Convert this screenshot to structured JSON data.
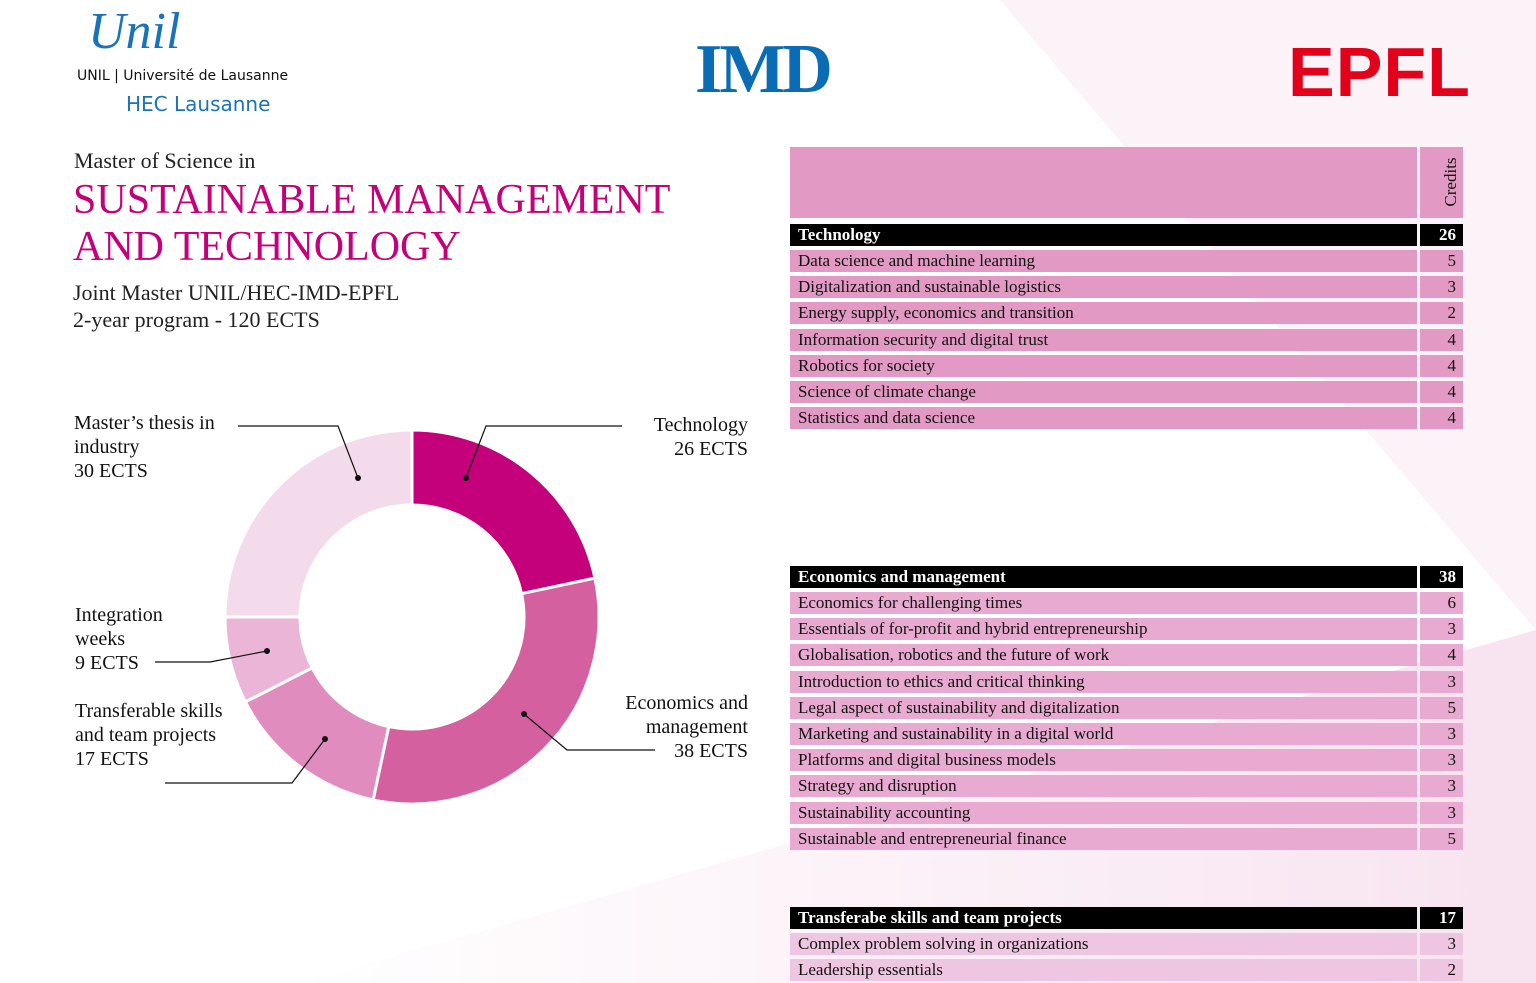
{
  "header": {
    "unil_logo": "Unil",
    "unil_name": "UNIL | Université de Lausanne",
    "hec": "HEC Lausanne",
    "imd": "IMD",
    "epfl": "EPFL"
  },
  "intro": {
    "kicker": "Master of Science in",
    "title_lines": [
      "SUSTAINABLE MANAGEMENT",
      "AND TECHNOLOGY"
    ],
    "subtitle": "Joint Master UNIL/HEC-IMD-EPFL",
    "program": "2-year program - 120 ECTS"
  },
  "chart_data": {
    "type": "pie",
    "donut": true,
    "categories": [
      "Technology",
      "Economics and management",
      "Transferable skills and team projects",
      "Integration weeks",
      "Master’s thesis in industry"
    ],
    "values": [
      26,
      38,
      17,
      9,
      30
    ],
    "value_labels": [
      "26 ECTS",
      "38 ECTS",
      "17 ECTS",
      "9 ECTS",
      "30 ECTS"
    ],
    "colors": [
      "#c4007a",
      "#d4609f",
      "#e08cbe",
      "#ebb5d7",
      "#f4dbeb"
    ]
  },
  "table": {
    "credits_header": "Credits",
    "sections": [
      {
        "title": "Technology",
        "total": 26,
        "color": "#e29ac5",
        "rows": [
          [
            "Data science and machine learning",
            5
          ],
          [
            "Digitalization and sustainable logistics",
            3
          ],
          [
            "Energy supply, economics and transition",
            2
          ],
          [
            "Information security and digital trust",
            4
          ],
          [
            "Robotics for society",
            4
          ],
          [
            "Science of climate change",
            4
          ],
          [
            "Statistics and data science",
            4
          ]
        ]
      },
      {
        "title": "Economics and management",
        "total": 38,
        "color": "#e8aad0",
        "rows": [
          [
            "Economics for challenging times",
            6
          ],
          [
            "Essentials of for-profit and hybrid entrepreneurship",
            3
          ],
          [
            "Globalisation, robotics and the future of work",
            4
          ],
          [
            "Introduction to ethics and critical thinking",
            3
          ],
          [
            "Legal aspect of sustainability and digitalization",
            5
          ],
          [
            "Marketing and sustainability in a digital world",
            3
          ],
          [
            "Platforms and digital business models",
            3
          ],
          [
            "Strategy and disruption",
            3
          ],
          [
            "Sustainability accounting",
            3
          ],
          [
            "Sustainable and entrepreneurial finance",
            5
          ]
        ]
      },
      {
        "title": "Transferabe skills and team projects",
        "total": 17,
        "color": "#efc6e1",
        "rows": [
          [
            "Complex problem solving in organizations",
            3
          ],
          [
            "Leadership essentials",
            2
          ]
        ]
      }
    ]
  }
}
